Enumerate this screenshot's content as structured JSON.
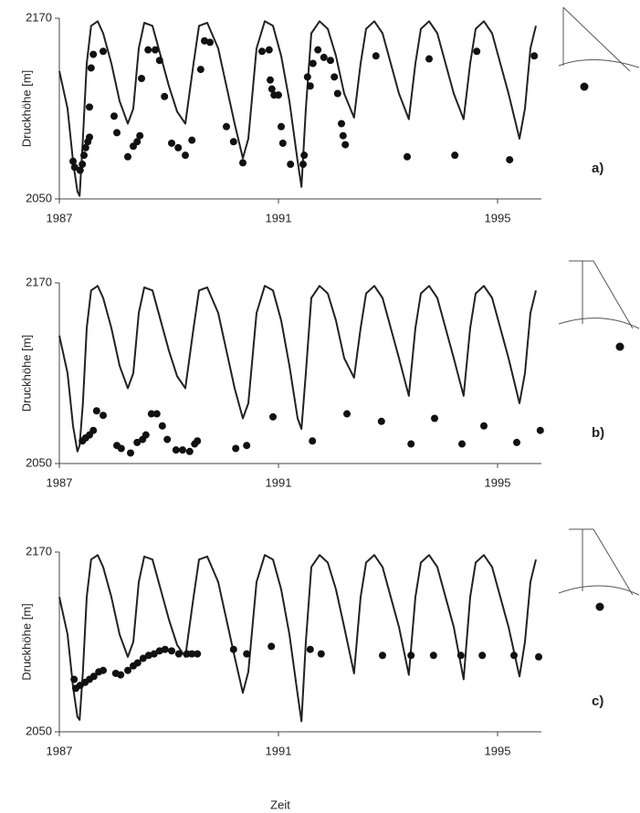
{
  "chart_data": [
    {
      "type": "line",
      "label": "a)",
      "ylabel": "Druckhöhe [m]",
      "xlim": [
        1987,
        1995.8
      ],
      "ylim": [
        2050,
        2170
      ],
      "xticks": [
        1987,
        1991,
        1995
      ],
      "yticks": [
        2050,
        2170
      ],
      "series": [
        {
          "type": "line",
          "color": "#222222",
          "x": [
            1987.0,
            1987.15,
            1987.25,
            1987.33,
            1987.37,
            1987.43,
            1987.5,
            1987.58,
            1987.7,
            1987.8,
            1987.95,
            1988.1,
            1988.25,
            1988.35,
            1988.45,
            1988.55,
            1988.7,
            1988.85,
            1989.0,
            1989.15,
            1989.3,
            1989.45,
            1989.55,
            1989.7,
            1989.9,
            1990.05,
            1990.2,
            1990.35,
            1990.45,
            1990.6,
            1990.75,
            1990.9,
            1991.05,
            1991.2,
            1991.35,
            1991.42,
            1991.5,
            1991.6,
            1991.75,
            1991.9,
            1992.05,
            1992.2,
            1992.38,
            1992.5,
            1992.6,
            1992.75,
            1992.9,
            1993.05,
            1993.2,
            1993.38,
            1993.5,
            1993.6,
            1993.75,
            1993.9,
            1994.05,
            1994.2,
            1994.38,
            1994.5,
            1994.6,
            1994.75,
            1994.9,
            1995.05,
            1995.2,
            1995.4,
            1995.5,
            1995.6,
            1995.7
          ],
          "values": [
            2135,
            2110,
            2075,
            2055,
            2052,
            2090,
            2140,
            2165,
            2168,
            2160,
            2140,
            2115,
            2100,
            2110,
            2150,
            2167,
            2165,
            2145,
            2125,
            2108,
            2100,
            2140,
            2165,
            2167,
            2150,
            2125,
            2100,
            2077,
            2090,
            2150,
            2168,
            2165,
            2145,
            2115,
            2075,
            2058,
            2110,
            2160,
            2168,
            2163,
            2145,
            2120,
            2104,
            2140,
            2163,
            2168,
            2160,
            2140,
            2120,
            2103,
            2140,
            2163,
            2168,
            2160,
            2140,
            2120,
            2103,
            2140,
            2163,
            2168,
            2160,
            2140,
            2120,
            2090,
            2110,
            2150,
            2165
          ]
        },
        {
          "type": "scatter",
          "color": "#111111",
          "x": [
            1987.25,
            1987.28,
            1987.38,
            1987.42,
            1987.45,
            1987.48,
            1987.52,
            1987.55,
            1987.55,
            1987.58,
            1987.62,
            1987.8,
            1988.0,
            1988.05,
            1988.25,
            1988.35,
            1988.42,
            1988.47,
            1988.5,
            1988.62,
            1988.75,
            1988.83,
            1988.92,
            1989.05,
            1989.17,
            1989.3,
            1989.42,
            1989.58,
            1989.65,
            1989.75,
            1990.05,
            1990.18,
            1990.35,
            1990.7,
            1990.83,
            1990.85,
            1990.88,
            1990.92,
            1991.0,
            1991.05,
            1991.08,
            1991.22,
            1991.45,
            1991.47,
            1991.53,
            1991.58,
            1991.63,
            1991.72,
            1991.83,
            1991.95,
            1992.02,
            1992.08,
            1992.15,
            1992.18,
            1992.22,
            1992.78,
            1993.35,
            1993.75,
            1994.22,
            1994.62,
            1995.22,
            1995.67
          ],
          "values": [
            2075,
            2071,
            2069,
            2073,
            2079,
            2084,
            2088,
            2091,
            2111,
            2137,
            2146,
            2148,
            2105,
            2094,
            2078,
            2085,
            2088,
            2092,
            2130,
            2149,
            2149,
            2142,
            2118,
            2087,
            2084,
            2079,
            2089,
            2136,
            2155,
            2154,
            2098,
            2088,
            2074,
            2148,
            2149,
            2129,
            2123,
            2119,
            2119,
            2098,
            2087,
            2073,
            2073,
            2079,
            2131,
            2125,
            2140,
            2149,
            2144,
            2142,
            2131,
            2120,
            2100,
            2092,
            2086,
            2145,
            2078,
            2143,
            2079,
            2148,
            2076,
            2145
          ]
        }
      ]
    },
    {
      "type": "line",
      "label": "b)",
      "ylabel": "Druckhöhe [m]",
      "xlim": [
        1987,
        1995.8
      ],
      "ylim": [
        2050,
        2170
      ],
      "xticks": [
        1987,
        1991,
        1995
      ],
      "yticks": [
        2050,
        2170
      ],
      "series": [
        {
          "type": "line",
          "color": "#222222",
          "x": [
            1987.0,
            1987.15,
            1987.25,
            1987.33,
            1987.37,
            1987.43,
            1987.5,
            1987.58,
            1987.7,
            1987.8,
            1987.95,
            1988.1,
            1988.25,
            1988.35,
            1988.45,
            1988.55,
            1988.7,
            1988.85,
            1989.0,
            1989.15,
            1989.3,
            1989.45,
            1989.55,
            1989.7,
            1989.9,
            1990.05,
            1990.2,
            1990.35,
            1990.45,
            1990.6,
            1990.75,
            1990.9,
            1991.05,
            1991.2,
            1991.35,
            1991.42,
            1991.5,
            1991.6,
            1991.75,
            1991.9,
            1992.05,
            1992.2,
            1992.38,
            1992.5,
            1992.6,
            1992.75,
            1992.9,
            1993.05,
            1993.2,
            1993.38,
            1993.5,
            1993.6,
            1993.75,
            1993.9,
            1994.05,
            1994.2,
            1994.38,
            1994.5,
            1994.6,
            1994.75,
            1994.9,
            1995.05,
            1995.2,
            1995.4,
            1995.5,
            1995.6,
            1995.7
          ],
          "values": [
            2135,
            2110,
            2075,
            2058,
            2062,
            2090,
            2140,
            2165,
            2168,
            2160,
            2140,
            2115,
            2100,
            2110,
            2150,
            2167,
            2165,
            2145,
            2125,
            2108,
            2100,
            2140,
            2165,
            2167,
            2150,
            2125,
            2100,
            2080,
            2090,
            2150,
            2168,
            2165,
            2145,
            2115,
            2080,
            2073,
            2110,
            2160,
            2168,
            2163,
            2145,
            2120,
            2107,
            2140,
            2163,
            2168,
            2160,
            2140,
            2120,
            2095,
            2140,
            2163,
            2168,
            2160,
            2140,
            2120,
            2095,
            2140,
            2163,
            2168,
            2160,
            2140,
            2120,
            2090,
            2110,
            2150,
            2165
          ]
        },
        {
          "type": "scatter",
          "color": "#111111",
          "x": [
            1987.42,
            1987.48,
            1987.55,
            1987.62,
            1987.68,
            1987.8,
            1988.05,
            1988.13,
            1988.3,
            1988.42,
            1988.52,
            1988.58,
            1988.68,
            1988.78,
            1988.88,
            1988.97,
            1989.13,
            1989.25,
            1989.38,
            1989.47,
            1989.52,
            1990.22,
            1990.42,
            1990.9,
            1991.62,
            1992.25,
            1992.88,
            1993.42,
            1993.85,
            1994.35,
            1994.75,
            1995.35,
            1995.78
          ],
          "values": [
            2065,
            2067,
            2069,
            2072,
            2085,
            2082,
            2062,
            2060,
            2057,
            2064,
            2066,
            2069,
            2083,
            2083,
            2075,
            2066,
            2059,
            2059,
            2058,
            2063,
            2065,
            2060,
            2062,
            2081,
            2065,
            2083,
            2078,
            2063,
            2080,
            2063,
            2075,
            2064,
            2072
          ]
        }
      ]
    },
    {
      "type": "line",
      "label": "c)",
      "ylabel": "Druckhöhe [m]",
      "xlim": [
        1987,
        1995.8
      ],
      "ylim": [
        2050,
        2170
      ],
      "xticks": [
        1987,
        1991,
        1995
      ],
      "yticks": [
        2050,
        2170
      ],
      "series": [
        {
          "type": "line",
          "color": "#222222",
          "x": [
            1987.0,
            1987.15,
            1987.25,
            1987.33,
            1987.37,
            1987.43,
            1987.5,
            1987.58,
            1987.7,
            1987.8,
            1987.95,
            1988.1,
            1988.25,
            1988.35,
            1988.45,
            1988.55,
            1988.7,
            1988.85,
            1989.0,
            1989.15,
            1989.3,
            1989.45,
            1989.55,
            1989.7,
            1989.9,
            1990.05,
            1990.2,
            1990.35,
            1990.45,
            1990.6,
            1990.75,
            1990.9,
            1991.05,
            1991.2,
            1991.35,
            1991.42,
            1991.5,
            1991.6,
            1991.75,
            1991.9,
            1992.05,
            1992.2,
            1992.38,
            1992.5,
            1992.6,
            1992.75,
            1992.9,
            1993.05,
            1993.2,
            1993.38,
            1993.5,
            1993.6,
            1993.75,
            1993.9,
            1994.05,
            1994.2,
            1994.38,
            1994.5,
            1994.6,
            1994.75,
            1994.9,
            1995.05,
            1995.2,
            1995.4,
            1995.5,
            1995.6,
            1995.7
          ],
          "values": [
            2140,
            2115,
            2080,
            2060,
            2058,
            2090,
            2140,
            2165,
            2168,
            2160,
            2140,
            2115,
            2100,
            2110,
            2150,
            2167,
            2165,
            2145,
            2125,
            2108,
            2100,
            2140,
            2165,
            2167,
            2150,
            2125,
            2100,
            2076,
            2090,
            2150,
            2168,
            2165,
            2145,
            2115,
            2075,
            2057,
            2110,
            2160,
            2168,
            2163,
            2145,
            2120,
            2089,
            2140,
            2163,
            2168,
            2160,
            2140,
            2120,
            2088,
            2140,
            2163,
            2168,
            2160,
            2140,
            2120,
            2085,
            2140,
            2163,
            2168,
            2160,
            2140,
            2120,
            2087,
            2110,
            2150,
            2165
          ]
        },
        {
          "type": "scatter",
          "color": "#111111",
          "x": [
            1987.27,
            1987.3,
            1987.38,
            1987.47,
            1987.55,
            1987.63,
            1987.72,
            1987.8,
            1988.03,
            1988.12,
            1988.25,
            1988.35,
            1988.43,
            1988.53,
            1988.63,
            1988.73,
            1988.83,
            1988.93,
            1989.05,
            1989.18,
            1989.33,
            1989.42,
            1989.52,
            1990.18,
            1990.42,
            1990.87,
            1991.58,
            1991.78,
            1992.9,
            1993.42,
            1993.83,
            1994.33,
            1994.72,
            1995.3,
            1995.75
          ],
          "values": [
            2085,
            2079,
            2081,
            2083,
            2085,
            2087,
            2090,
            2091,
            2089,
            2088,
            2091,
            2094,
            2096,
            2099,
            2101,
            2102,
            2104,
            2105,
            2104,
            2102,
            2102,
            2102,
            2102,
            2105,
            2102,
            2107,
            2105,
            2102,
            2101,
            2101,
            2101,
            2101,
            2101,
            2101,
            2100
          ]
        }
      ]
    }
  ],
  "xlabel": "Zeit"
}
